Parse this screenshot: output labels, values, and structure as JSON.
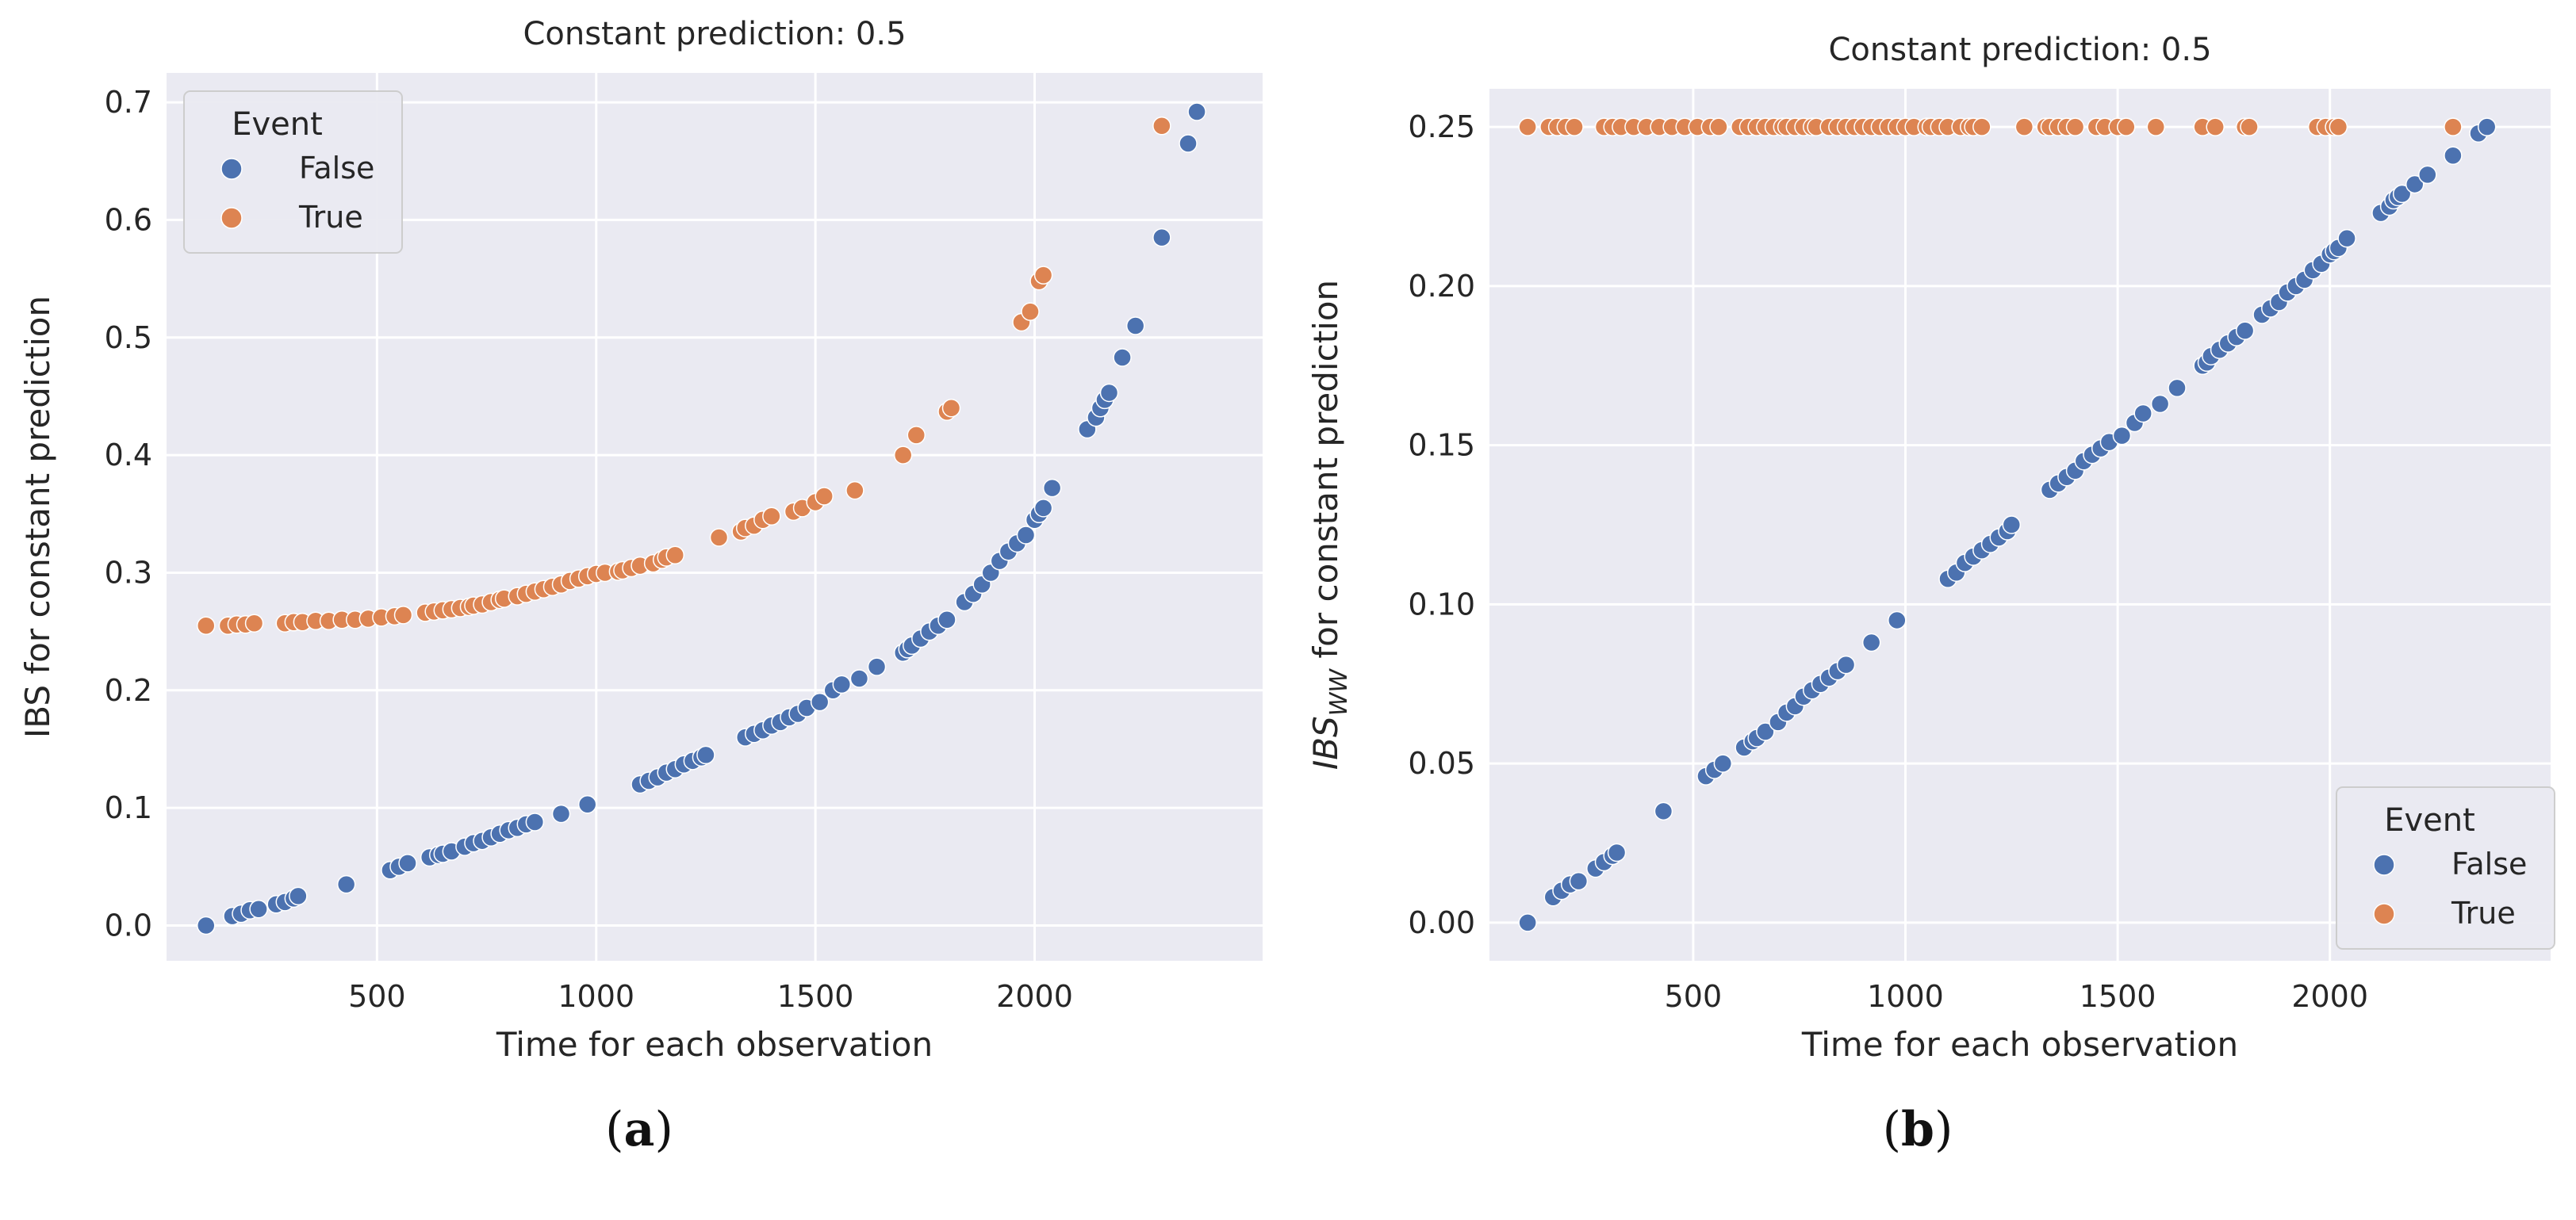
{
  "figure": {
    "caption_a": "a",
    "caption_b": "b"
  },
  "colors": {
    "bg": "#EAEAF2",
    "grid": "#FFFFFF",
    "false": "#4C72B0",
    "true": "#DD8452"
  },
  "chart_data": [
    {
      "type": "scatter",
      "title": "Constant prediction: 0.5",
      "xlabel": "Time for each observation",
      "ylabel": "IBS for constant prediction",
      "xlim": [
        20,
        2520
      ],
      "ylim": [
        -0.03,
        0.725
      ],
      "xticks": [
        500,
        1000,
        1500,
        2000
      ],
      "xtick_labels": [
        "500",
        "1000",
        "1500",
        "2000"
      ],
      "yticks": [
        0.0,
        0.1,
        0.2,
        0.3,
        0.4,
        0.5,
        0.6,
        0.7
      ],
      "ytick_labels": [
        "0.0",
        "0.1",
        "0.2",
        "0.3",
        "0.4",
        "0.5",
        "0.6",
        "0.7"
      ],
      "grid": true,
      "legend": {
        "title": "Event",
        "placement": "top-left",
        "entries": [
          "False",
          "True"
        ]
      },
      "series": [
        {
          "name": "False",
          "x": [
            110,
            170,
            190,
            210,
            230,
            270,
            290,
            310,
            320,
            430,
            530,
            550,
            570,
            620,
            640,
            650,
            670,
            700,
            720,
            740,
            760,
            780,
            800,
            820,
            840,
            860,
            920,
            980,
            1100,
            1120,
            1140,
            1160,
            1180,
            1200,
            1220,
            1240,
            1250,
            1340,
            1360,
            1380,
            1400,
            1420,
            1440,
            1460,
            1480,
            1510,
            1540,
            1560,
            1600,
            1640,
            1700,
            1710,
            1720,
            1740,
            1760,
            1780,
            1800,
            1840,
            1860,
            1880,
            1900,
            1920,
            1940,
            1960,
            1980,
            2000,
            2010,
            2020,
            2040,
            2120,
            2140,
            2150,
            2160,
            2170,
            2200,
            2230,
            2290,
            2350,
            2370
          ],
          "y": [
            0.0,
            0.008,
            0.01,
            0.013,
            0.014,
            0.018,
            0.02,
            0.023,
            0.025,
            0.035,
            0.047,
            0.05,
            0.053,
            0.058,
            0.06,
            0.061,
            0.063,
            0.067,
            0.07,
            0.072,
            0.075,
            0.078,
            0.081,
            0.083,
            0.086,
            0.088,
            0.095,
            0.103,
            0.12,
            0.123,
            0.126,
            0.13,
            0.133,
            0.137,
            0.14,
            0.143,
            0.145,
            0.16,
            0.163,
            0.166,
            0.17,
            0.173,
            0.177,
            0.18,
            0.185,
            0.19,
            0.2,
            0.205,
            0.21,
            0.22,
            0.232,
            0.235,
            0.238,
            0.244,
            0.25,
            0.255,
            0.26,
            0.275,
            0.282,
            0.29,
            0.3,
            0.31,
            0.318,
            0.325,
            0.332,
            0.345,
            0.35,
            0.355,
            0.372,
            0.422,
            0.432,
            0.44,
            0.447,
            0.453,
            0.483,
            0.51,
            0.585,
            0.665,
            0.692
          ]
        },
        {
          "name": "True",
          "x": [
            110,
            160,
            180,
            200,
            220,
            290,
            310,
            330,
            360,
            390,
            420,
            450,
            480,
            510,
            540,
            560,
            610,
            630,
            650,
            670,
            690,
            710,
            720,
            740,
            760,
            780,
            790,
            820,
            840,
            860,
            880,
            900,
            920,
            940,
            960,
            980,
            1000,
            1020,
            1050,
            1060,
            1080,
            1100,
            1130,
            1150,
            1160,
            1180,
            1280,
            1330,
            1340,
            1360,
            1380,
            1400,
            1450,
            1470,
            1500,
            1520,
            1590,
            1700,
            1730,
            1800,
            1810,
            1970,
            1990,
            2010,
            2020,
            2290
          ],
          "y": [
            0.255,
            0.255,
            0.256,
            0.256,
            0.257,
            0.257,
            0.258,
            0.258,
            0.259,
            0.259,
            0.26,
            0.26,
            0.261,
            0.262,
            0.263,
            0.264,
            0.266,
            0.267,
            0.268,
            0.269,
            0.27,
            0.271,
            0.272,
            0.273,
            0.275,
            0.277,
            0.278,
            0.28,
            0.282,
            0.284,
            0.286,
            0.288,
            0.29,
            0.293,
            0.295,
            0.297,
            0.299,
            0.3,
            0.301,
            0.302,
            0.304,
            0.306,
            0.308,
            0.311,
            0.313,
            0.315,
            0.33,
            0.335,
            0.338,
            0.34,
            0.345,
            0.348,
            0.352,
            0.355,
            0.36,
            0.365,
            0.37,
            0.4,
            0.417,
            0.437,
            0.44,
            0.513,
            0.522,
            0.548,
            0.553,
            0.68
          ]
        }
      ]
    },
    {
      "type": "scatter",
      "title": "Constant prediction: 0.5",
      "xlabel": "Time for each observation",
      "ylabel": "IBS",
      "ylabel_subscript": "WW",
      "ylabel_suffix": " for constant prediction",
      "xlim": [
        20,
        2520
      ],
      "ylim": [
        -0.012,
        0.262
      ],
      "xticks": [
        500,
        1000,
        1500,
        2000
      ],
      "xtick_labels": [
        "500",
        "1000",
        "1500",
        "2000"
      ],
      "yticks": [
        0.0,
        0.05,
        0.1,
        0.15,
        0.2,
        0.25
      ],
      "ytick_labels": [
        "0.00",
        "0.05",
        "0.10",
        "0.15",
        "0.20",
        "0.25"
      ],
      "grid": true,
      "legend": {
        "title": "Event",
        "placement": "bottom-right",
        "entries": [
          "False",
          "True"
        ]
      },
      "series": [
        {
          "name": "False",
          "x": [
            110,
            170,
            190,
            210,
            230,
            270,
            290,
            310,
            320,
            430,
            530,
            550,
            570,
            620,
            640,
            650,
            670,
            700,
            720,
            740,
            760,
            780,
            800,
            820,
            840,
            860,
            920,
            980,
            1100,
            1120,
            1140,
            1160,
            1180,
            1200,
            1220,
            1240,
            1250,
            1340,
            1360,
            1380,
            1400,
            1420,
            1440,
            1460,
            1480,
            1510,
            1540,
            1560,
            1600,
            1640,
            1700,
            1710,
            1720,
            1740,
            1760,
            1780,
            1800,
            1840,
            1860,
            1880,
            1900,
            1920,
            1940,
            1960,
            1980,
            2000,
            2010,
            2020,
            2040,
            2120,
            2140,
            2150,
            2160,
            2170,
            2200,
            2230,
            2290,
            2350,
            2370
          ],
          "y": [
            0.0,
            0.008,
            0.01,
            0.012,
            0.013,
            0.017,
            0.019,
            0.021,
            0.022,
            0.035,
            0.046,
            0.048,
            0.05,
            0.055,
            0.057,
            0.058,
            0.06,
            0.063,
            0.066,
            0.068,
            0.071,
            0.073,
            0.075,
            0.077,
            0.079,
            0.081,
            0.088,
            0.095,
            0.108,
            0.11,
            0.113,
            0.115,
            0.117,
            0.119,
            0.121,
            0.123,
            0.125,
            0.136,
            0.138,
            0.14,
            0.142,
            0.145,
            0.147,
            0.149,
            0.151,
            0.153,
            0.157,
            0.16,
            0.163,
            0.168,
            0.175,
            0.176,
            0.178,
            0.18,
            0.182,
            0.184,
            0.186,
            0.191,
            0.193,
            0.195,
            0.198,
            0.2,
            0.202,
            0.205,
            0.207,
            0.21,
            0.211,
            0.212,
            0.215,
            0.223,
            0.225,
            0.227,
            0.228,
            0.229,
            0.232,
            0.235,
            0.241,
            0.248,
            0.25
          ]
        },
        {
          "name": "True",
          "x": [
            110,
            160,
            180,
            200,
            220,
            290,
            310,
            330,
            360,
            390,
            420,
            450,
            480,
            510,
            540,
            560,
            610,
            630,
            650,
            670,
            690,
            710,
            720,
            740,
            760,
            780,
            790,
            820,
            840,
            860,
            880,
            900,
            920,
            940,
            960,
            980,
            1000,
            1020,
            1050,
            1060,
            1080,
            1100,
            1130,
            1150,
            1160,
            1180,
            1280,
            1330,
            1340,
            1360,
            1380,
            1400,
            1450,
            1470,
            1500,
            1520,
            1590,
            1700,
            1730,
            1800,
            1810,
            1970,
            1990,
            2010,
            2020,
            2290
          ],
          "y": [
            0.25,
            0.25,
            0.25,
            0.25,
            0.25,
            0.25,
            0.25,
            0.25,
            0.25,
            0.25,
            0.25,
            0.25,
            0.25,
            0.25,
            0.25,
            0.25,
            0.25,
            0.25,
            0.25,
            0.25,
            0.25,
            0.25,
            0.25,
            0.25,
            0.25,
            0.25,
            0.25,
            0.25,
            0.25,
            0.25,
            0.25,
            0.25,
            0.25,
            0.25,
            0.25,
            0.25,
            0.25,
            0.25,
            0.25,
            0.25,
            0.25,
            0.25,
            0.25,
            0.25,
            0.25,
            0.25,
            0.25,
            0.25,
            0.25,
            0.25,
            0.25,
            0.25,
            0.25,
            0.25,
            0.25,
            0.25,
            0.25,
            0.25,
            0.25,
            0.25,
            0.25,
            0.25,
            0.25,
            0.25,
            0.25,
            0.25
          ]
        }
      ]
    }
  ]
}
